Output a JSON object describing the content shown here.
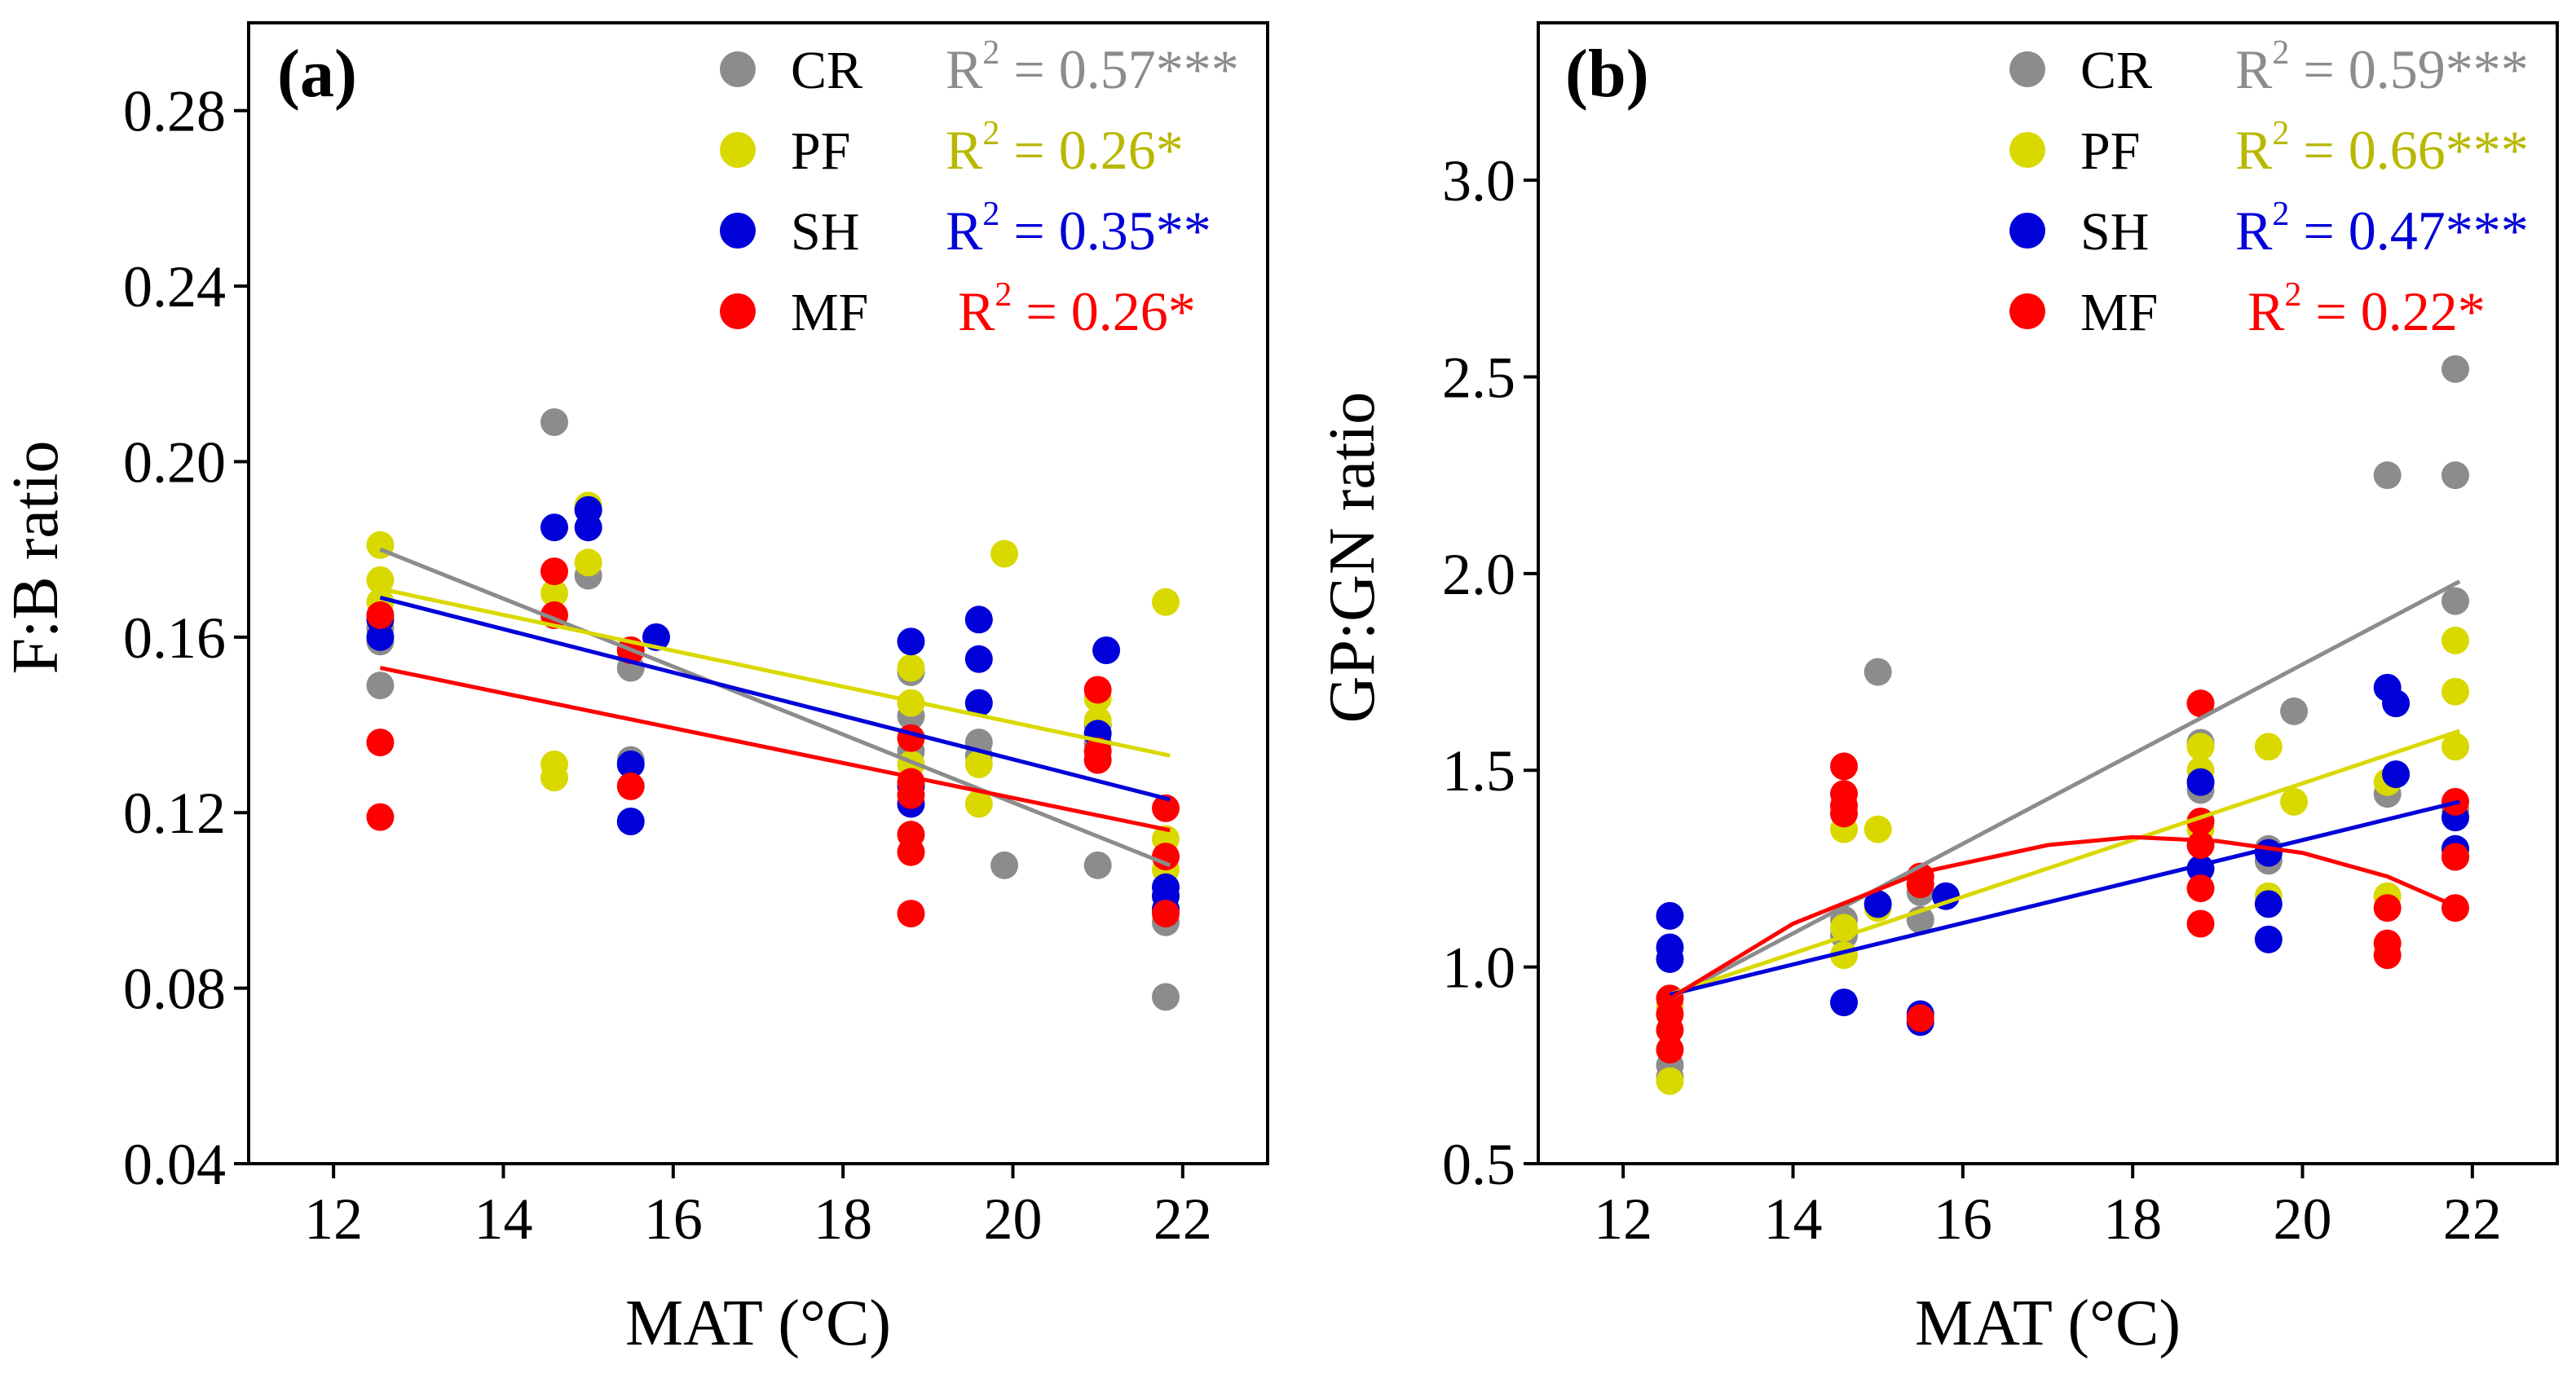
{
  "colors": {
    "CR": "#8c8c8c",
    "PF": "#d9d900",
    "SH": "#0000d9",
    "MF": "#ff0000",
    "CR_text": "#8c8c8c",
    "PF_text": "#b8b800",
    "SH_text": "#0000d9",
    "MF_text": "#ff0000"
  },
  "chart_data": [
    {
      "type": "scatter",
      "panel_label": "(a)",
      "xlabel": "MAT (°C)",
      "ylabel": "F:B ratio",
      "xlim": [
        11,
        23
      ],
      "ylim": [
        0.04,
        0.3
      ],
      "xticks": [
        12,
        14,
        16,
        18,
        20,
        22
      ],
      "yticks": [
        0.04,
        0.08,
        0.12,
        0.16,
        0.2,
        0.24,
        0.28
      ],
      "ytick_decimals": 2,
      "legend": [
        {
          "name": "CR",
          "r2_label": "R",
          "r2_sup": "2",
          "r2_value": " = 0.57***"
        },
        {
          "name": "PF",
          "r2_label": "R",
          "r2_sup": "2",
          "r2_value": " = 0.26*"
        },
        {
          "name": "SH",
          "r2_label": "R",
          "r2_sup": "2",
          "r2_value": " = 0.35**"
        },
        {
          "name": "MF",
          "r2_label": "R",
          "r2_sup": "2",
          "r2_value": " = 0.26*"
        }
      ],
      "series": [
        {
          "name": "CR",
          "x": [
            12.55,
            12.55,
            12.55,
            14.6,
            15.0,
            15.0,
            15.5,
            15.5,
            18.8,
            18.8,
            18.8,
            19.6,
            19.6,
            19.9,
            21.0,
            21.0,
            21.0,
            21.8,
            21.8,
            21.8
          ],
          "y": [
            0.149,
            0.159,
            0.162,
            0.209,
            0.174,
            0.189,
            0.153,
            0.132,
            0.152,
            0.142,
            0.134,
            0.136,
            0.133,
            0.108,
            0.108,
            0.14,
            0.136,
            0.078,
            0.095,
            0.101
          ],
          "fit": {
            "kind": "linear",
            "x0": 12.55,
            "x1": 21.85,
            "y0": 0.18,
            "y1": 0.108
          }
        },
        {
          "name": "PF",
          "x": [
            12.55,
            12.55,
            12.55,
            14.6,
            14.6,
            14.6,
            15.0,
            15.0,
            15.5,
            18.8,
            18.8,
            18.8,
            19.6,
            19.6,
            19.9,
            21.0,
            21.0,
            21.8,
            21.8,
            21.8
          ],
          "y": [
            0.181,
            0.173,
            0.168,
            0.131,
            0.128,
            0.17,
            0.19,
            0.177,
            0.157,
            0.153,
            0.145,
            0.131,
            0.131,
            0.122,
            0.179,
            0.146,
            0.141,
            0.168,
            0.114,
            0.107
          ],
          "fit": {
            "kind": "linear",
            "x0": 12.55,
            "x1": 21.85,
            "y0": 0.171,
            "y1": 0.133
          }
        },
        {
          "name": "SH",
          "x": [
            12.55,
            12.55,
            14.6,
            15.0,
            15.0,
            15.5,
            15.5,
            15.8,
            18.8,
            18.8,
            18.8,
            19.6,
            19.6,
            19.6,
            21.0,
            21.1,
            21.8,
            21.8,
            21.8
          ],
          "y": [
            0.16,
            0.164,
            0.185,
            0.185,
            0.189,
            0.131,
            0.118,
            0.16,
            0.159,
            0.126,
            0.122,
            0.164,
            0.155,
            0.145,
            0.138,
            0.157,
            0.103,
            0.101,
            0.098
          ],
          "fit": {
            "kind": "linear",
            "x0": 12.55,
            "x1": 21.85,
            "y0": 0.169,
            "y1": 0.123
          }
        },
        {
          "name": "MF",
          "x": [
            12.55,
            12.55,
            12.55,
            14.6,
            14.6,
            15.5,
            15.5,
            18.8,
            18.8,
            18.8,
            18.8,
            18.8,
            18.8,
            21.0,
            21.0,
            21.0,
            21.8,
            21.8,
            21.8
          ],
          "y": [
            0.165,
            0.136,
            0.119,
            0.175,
            0.165,
            0.157,
            0.126,
            0.137,
            0.127,
            0.124,
            0.115,
            0.111,
            0.097,
            0.148,
            0.134,
            0.132,
            0.121,
            0.11,
            0.097
          ],
          "fit": {
            "kind": "linear",
            "x0": 12.55,
            "x1": 21.85,
            "y0": 0.153,
            "y1": 0.116
          }
        }
      ]
    },
    {
      "type": "scatter",
      "panel_label": "(b)",
      "xlabel": "MAT (°C)",
      "ylabel": "GP:GN ratio",
      "xlim": [
        11,
        23
      ],
      "ylim": [
        0.5,
        3.4
      ],
      "xticks": [
        12,
        14,
        16,
        18,
        20,
        22
      ],
      "yticks": [
        0.5,
        1.0,
        1.5,
        2.0,
        2.5,
        3.0
      ],
      "ytick_decimals": 1,
      "legend": [
        {
          "name": "CR",
          "r2_label": "R",
          "r2_sup": "2",
          "r2_value": " = 0.59***"
        },
        {
          "name": "PF",
          "r2_label": "R",
          "r2_sup": "2",
          "r2_value": " = 0.66***"
        },
        {
          "name": "SH",
          "r2_label": "R",
          "r2_sup": "2",
          "r2_value": " = 0.47***"
        },
        {
          "name": "MF",
          "r2_label": "R",
          "r2_sup": "2",
          "r2_value": " = 0.22*"
        }
      ],
      "series": [
        {
          "name": "CR",
          "x": [
            12.55,
            12.55,
            14.6,
            14.6,
            15.0,
            15.5,
            15.5,
            18.8,
            18.8,
            19.6,
            19.6,
            19.9,
            21.0,
            21.0,
            21.8,
            21.8,
            21.8,
            21.8
          ],
          "y": [
            0.72,
            0.75,
            1.08,
            1.12,
            1.75,
            1.12,
            1.19,
            1.57,
            1.45,
            1.3,
            1.27,
            1.65,
            2.25,
            1.44,
            2.52,
            2.25,
            1.93,
            1.4
          ],
          "fit": {
            "kind": "linear",
            "x0": 12.55,
            "x1": 21.85,
            "y0": 0.92,
            "y1": 1.98
          }
        },
        {
          "name": "PF",
          "x": [
            12.55,
            12.55,
            14.6,
            14.6,
            14.6,
            15.0,
            15.0,
            15.5,
            18.8,
            18.8,
            18.8,
            19.6,
            19.6,
            19.9,
            21.0,
            21.0,
            21.8,
            21.8,
            21.8,
            21.8
          ],
          "y": [
            0.71,
            0.9,
            1.03,
            1.1,
            1.35,
            1.35,
            1.15,
            1.21,
            1.56,
            1.5,
            1.35,
            1.56,
            1.18,
            1.42,
            1.47,
            1.18,
            1.83,
            1.7,
            1.56,
            1.3
          ],
          "fit": {
            "kind": "linear",
            "x0": 12.55,
            "x1": 21.85,
            "y0": 0.93,
            "y1": 1.6
          }
        },
        {
          "name": "SH",
          "x": [
            12.55,
            12.55,
            12.55,
            14.6,
            15.0,
            15.5,
            15.5,
            15.8,
            18.8,
            18.8,
            19.6,
            19.6,
            19.6,
            21.0,
            21.1,
            21.1,
            21.8,
            21.8,
            21.8
          ],
          "y": [
            1.13,
            1.05,
            1.02,
            0.91,
            1.16,
            0.88,
            0.86,
            1.18,
            1.47,
            1.25,
            1.29,
            1.16,
            1.07,
            1.71,
            1.67,
            1.49,
            1.38,
            1.3,
            1.28
          ],
          "fit": {
            "kind": "linear",
            "x0": 12.55,
            "x1": 21.85,
            "y0": 0.93,
            "y1": 1.42
          }
        },
        {
          "name": "MF",
          "x": [
            12.55,
            12.55,
            12.55,
            12.55,
            14.6,
            14.6,
            14.6,
            14.6,
            15.5,
            15.5,
            15.5,
            18.8,
            18.8,
            18.8,
            18.8,
            18.8,
            21.0,
            21.0,
            21.0,
            21.8,
            21.8,
            21.8
          ],
          "y": [
            0.88,
            0.84,
            0.79,
            0.92,
            1.51,
            1.44,
            1.41,
            1.39,
            1.23,
            1.21,
            0.87,
            1.67,
            1.37,
            1.31,
            1.2,
            1.11,
            1.15,
            1.06,
            1.03,
            1.42,
            1.28,
            1.15
          ],
          "fit": {
            "kind": "quadratic",
            "points": [
              [
                12.55,
                0.92
              ],
              [
                14.0,
                1.11
              ],
              [
                15.5,
                1.24
              ],
              [
                17.0,
                1.31
              ],
              [
                18.0,
                1.33
              ],
              [
                19.0,
                1.32
              ],
              [
                20.0,
                1.29
              ],
              [
                21.0,
                1.23
              ],
              [
                21.85,
                1.15
              ]
            ]
          }
        }
      ]
    }
  ]
}
